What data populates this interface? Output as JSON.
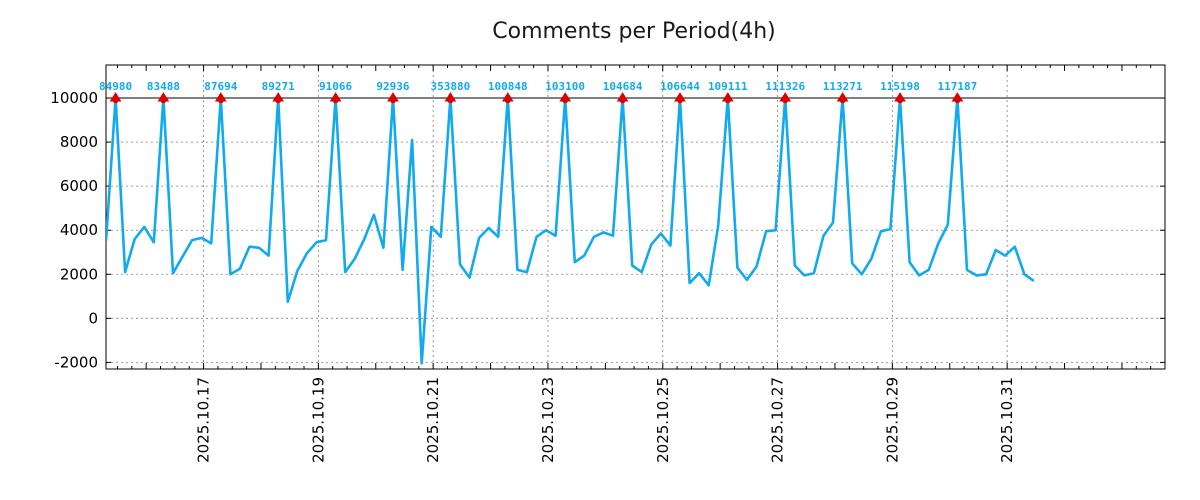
{
  "chart_data": {
    "type": "line",
    "title": "Comments per Period(4h)",
    "xlabel": "",
    "ylabel": "",
    "ylim": [
      -2300,
      11500
    ],
    "yticks": [
      -2000,
      0,
      2000,
      4000,
      6000,
      8000,
      10000
    ],
    "x_start_day": 15.3,
    "x_end_day": 33.75,
    "period_hours": 4,
    "xticks": [
      {
        "day": 17,
        "label": "2025.10.17"
      },
      {
        "day": 19,
        "label": "2025.10.19"
      },
      {
        "day": 21,
        "label": "2025.10.21"
      },
      {
        "day": 23,
        "label": "2025.10.23"
      },
      {
        "day": 25,
        "label": "2025.10.25"
      },
      {
        "day": 27,
        "label": "2025.10.27"
      },
      {
        "day": 29,
        "label": "2025.10.29"
      },
      {
        "day": 31,
        "label": "2025.10.31"
      }
    ],
    "reference_line": 10000,
    "grid": true,
    "series": [
      {
        "name": "Comments per Period(4h)",
        "color": "#11aaee",
        "values": [
          3500,
          10000,
          2100,
          3600,
          4150,
          3450,
          10000,
          2050,
          2800,
          3550,
          3650,
          3400,
          10000,
          2000,
          2250,
          3250,
          3200,
          2850,
          10000,
          750,
          2150,
          2950,
          3450,
          3550,
          10000,
          2100,
          2700,
          3600,
          4700,
          3200,
          10000,
          2200,
          8100,
          -2050,
          4150,
          3700,
          10000,
          2450,
          1850,
          3650,
          4100,
          3700,
          10000,
          2200,
          2100,
          3700,
          4000,
          3750,
          10000,
          2550,
          2850,
          3700,
          3900,
          3750,
          10000,
          2400,
          2100,
          3350,
          3850,
          3300,
          10000,
          1600,
          2050,
          1500,
          4200,
          10000,
          2300,
          1750,
          2350,
          3950,
          4000,
          10000,
          2400,
          1950,
          2050,
          3750,
          4350,
          10000,
          2500,
          2000,
          2700,
          3950,
          4050,
          10000,
          2550,
          1950,
          2200,
          3400,
          4250,
          10000,
          2200,
          1950,
          2000,
          3100,
          2850,
          3250,
          2000,
          1700
        ]
      }
    ],
    "peak_markers": [
      {
        "index": 1,
        "label": "84980"
      },
      {
        "index": 6,
        "label": "83488"
      },
      {
        "index": 12,
        "label": "87694"
      },
      {
        "index": 18,
        "label": "89271"
      },
      {
        "index": 24,
        "label": "91066"
      },
      {
        "index": 30,
        "label": "92936"
      },
      {
        "index": 36,
        "label": "353880"
      },
      {
        "index": 42,
        "label": "100848"
      },
      {
        "index": 48,
        "label": "103100"
      },
      {
        "index": 54,
        "label": "104684"
      },
      {
        "index": 60,
        "label": "106644"
      },
      {
        "index": 65,
        "label": "109111"
      },
      {
        "index": 71,
        "label": "111326"
      },
      {
        "index": 77,
        "label": "113271"
      },
      {
        "index": 83,
        "label": "115198"
      },
      {
        "index": 89,
        "label": "117187"
      }
    ],
    "marker_color": "#dd0000",
    "label_color": "#11aaee"
  }
}
